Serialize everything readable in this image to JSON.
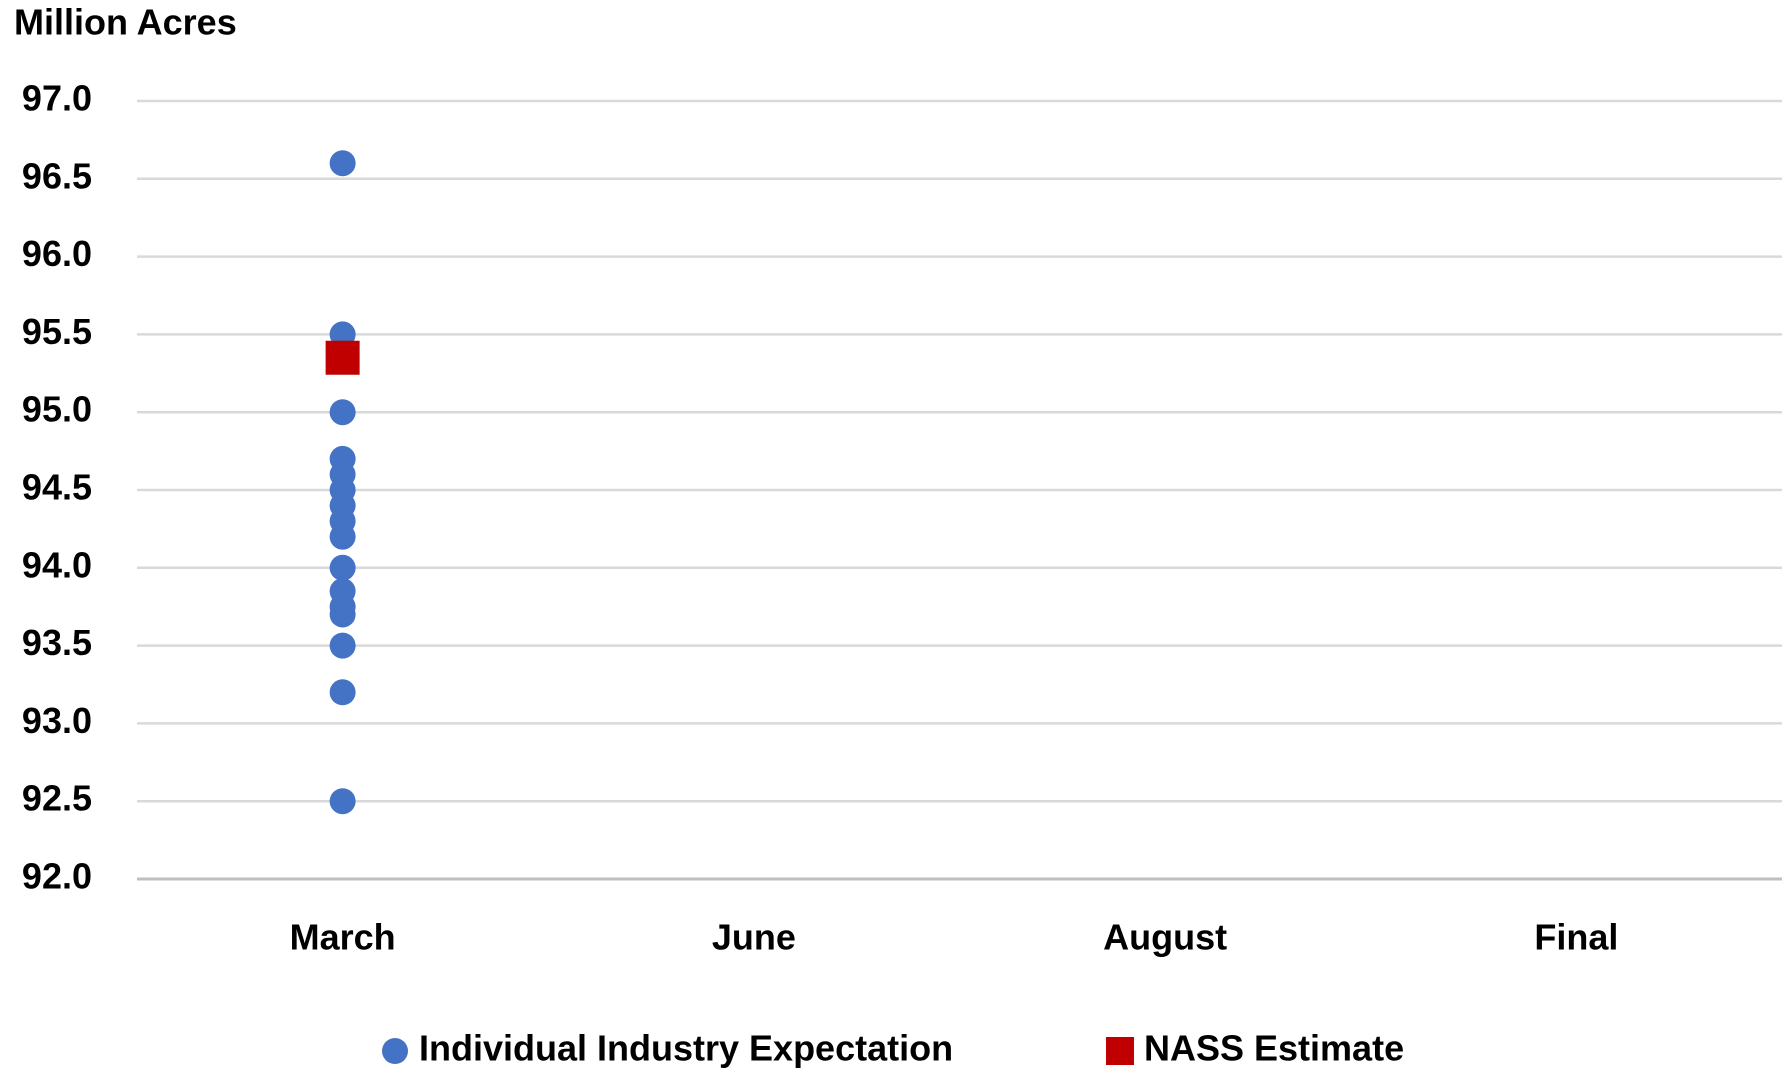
{
  "chart_data": {
    "type": "dot",
    "y_label": "Million Acres",
    "categories": [
      "March",
      "June",
      "August",
      "Final"
    ],
    "ylim": [
      92,
      97
    ],
    "yticks": [
      {
        "value": 92,
        "label": "92.0"
      },
      92.5,
      {
        "value": 93,
        "label": "93.0"
      },
      93.5,
      {
        "value": 94,
        "label": "94.0"
      },
      94.5,
      {
        "value": 95,
        "label": "95.0"
      },
      95.5,
      {
        "value": 96,
        "label": "96.0"
      },
      96.5,
      {
        "value": 97,
        "label": "97.0"
      }
    ],
    "grid": true,
    "series": [
      {
        "name": "Individual Industry Expectation",
        "color": "#4472c4",
        "marker": "circle",
        "x": [
          "March",
          "March",
          "March",
          "March",
          "March",
          "March",
          "March",
          "March",
          "March",
          "March",
          "March",
          "March",
          "March",
          "March",
          "March",
          "March"
        ],
        "values": [
          96.6,
          95.5,
          95.0,
          94.7,
          94.6,
          94.5,
          94.4,
          94.3,
          94.2,
          94.0,
          93.85,
          93.75,
          93.7,
          93.5,
          93.2,
          92.5
        ]
      },
      {
        "name": "NASS Estimate",
        "color": "#c00000",
        "marker": "square",
        "x": [
          "March"
        ],
        "values": [
          95.35
        ]
      }
    ]
  }
}
